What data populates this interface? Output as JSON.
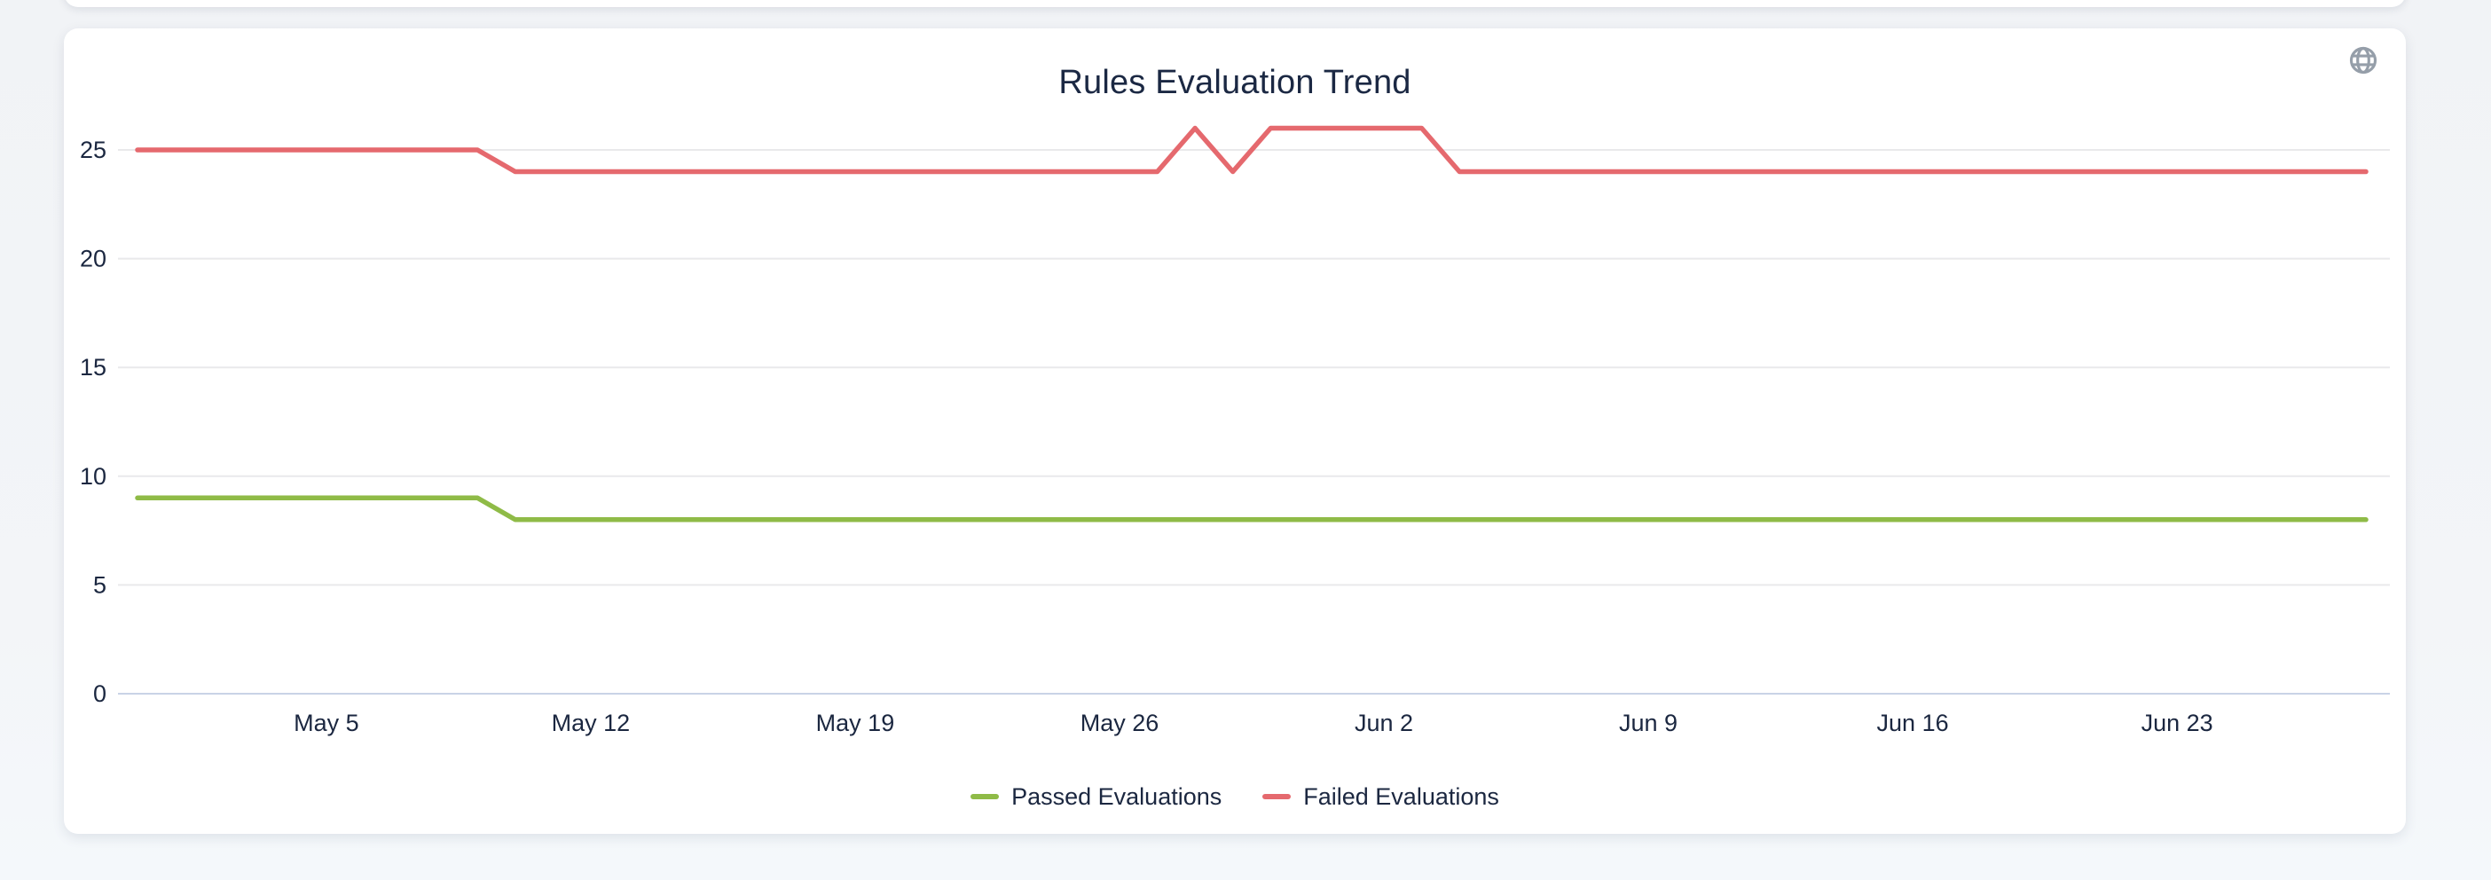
{
  "header": {
    "title": "Rules Evaluation Trend"
  },
  "colors": {
    "passed": "#8fbb47",
    "failed": "#e5696e",
    "grid": "#e9e9eb",
    "zero_axis": "#c9d3e6",
    "text": "#1b2740",
    "icon_gray": "#959ea9",
    "card_bg": "#ffffff",
    "page_bg": "#f3f5f8"
  },
  "chart_data": {
    "type": "line",
    "title": "Rules Evaluation Trend",
    "xlabel": "",
    "ylabel": "",
    "grid": true,
    "legend_position": "bottom",
    "ylim": [
      0,
      26.5
    ],
    "yticks": [
      0,
      5,
      10,
      15,
      20,
      25
    ],
    "xticks": [
      {
        "label": "May 5",
        "index": 5
      },
      {
        "label": "May 12",
        "index": 12
      },
      {
        "label": "May 19",
        "index": 19
      },
      {
        "label": "May 26",
        "index": 26
      },
      {
        "label": "Jun 2",
        "index": 33
      },
      {
        "label": "Jun 9",
        "index": 40
      },
      {
        "label": "Jun 16",
        "index": 47
      },
      {
        "label": "Jun 23",
        "index": 54
      }
    ],
    "x": [
      "Apr 30",
      "May 1",
      "May 2",
      "May 3",
      "May 4",
      "May 5",
      "May 6",
      "May 7",
      "May 8",
      "May 9",
      "May 10",
      "May 11",
      "May 12",
      "May 13",
      "May 14",
      "May 15",
      "May 16",
      "May 17",
      "May 18",
      "May 19",
      "May 20",
      "May 21",
      "May 22",
      "May 23",
      "May 24",
      "May 25",
      "May 26",
      "May 27",
      "May 28",
      "May 29",
      "May 30",
      "May 31",
      "Jun 1",
      "Jun 2",
      "Jun 3",
      "Jun 4",
      "Jun 5",
      "Jun 6",
      "Jun 7",
      "Jun 8",
      "Jun 9",
      "Jun 10",
      "Jun 11",
      "Jun 12",
      "Jun 13",
      "Jun 14",
      "Jun 15",
      "Jun 16",
      "Jun 17",
      "Jun 18",
      "Jun 19",
      "Jun 20",
      "Jun 21",
      "Jun 22",
      "Jun 23",
      "Jun 24",
      "Jun 25",
      "Jun 26",
      "Jun 27",
      "Jun 28"
    ],
    "series": [
      {
        "name": "Passed Evaluations",
        "color": "#8fbb47",
        "values": [
          9,
          9,
          9,
          9,
          9,
          9,
          9,
          9,
          9,
          9,
          8,
          8,
          8,
          8,
          8,
          8,
          8,
          8,
          8,
          8,
          8,
          8,
          8,
          8,
          8,
          8,
          8,
          8,
          8,
          8,
          8,
          8,
          8,
          8,
          8,
          8,
          8,
          8,
          8,
          8,
          8,
          8,
          8,
          8,
          8,
          8,
          8,
          8,
          8,
          8,
          8,
          8,
          8,
          8,
          8,
          8,
          8,
          8,
          8,
          8
        ]
      },
      {
        "name": "Failed Evaluations",
        "color": "#e5696e",
        "values": [
          25,
          25,
          25,
          25,
          25,
          25,
          25,
          25,
          25,
          25,
          24,
          24,
          24,
          24,
          24,
          24,
          24,
          24,
          24,
          24,
          24,
          24,
          24,
          24,
          24,
          24,
          24,
          24,
          26,
          24,
          26,
          26,
          26,
          26,
          26,
          24,
          24,
          24,
          24,
          24,
          24,
          24,
          24,
          24,
          24,
          24,
          24,
          24,
          24,
          24,
          24,
          24,
          24,
          24,
          24,
          24,
          24,
          24,
          24,
          24
        ]
      }
    ]
  }
}
